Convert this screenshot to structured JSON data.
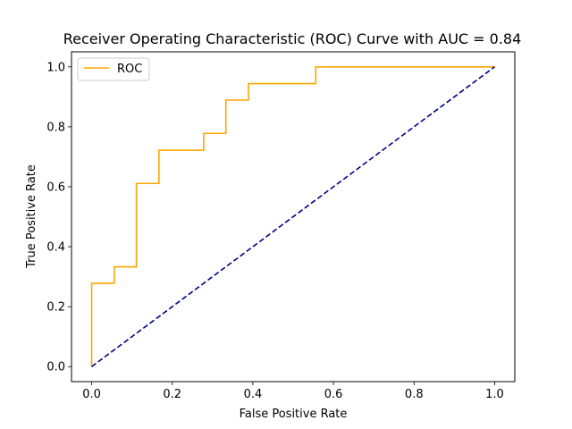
{
  "chart_data": {
    "type": "line",
    "title": "Receiver Operating Characteristic (ROC) Curve with AUC = 0.84",
    "xlabel": "False Positive Rate",
    "ylabel": "True Positive Rate",
    "xlim": [
      -0.05,
      1.05
    ],
    "ylim": [
      -0.05,
      1.05
    ],
    "x_ticks": [
      0.0,
      0.2,
      0.4,
      0.6,
      0.8,
      1.0
    ],
    "x_tick_labels": [
      "0.0",
      "0.2",
      "0.4",
      "0.6",
      "0.8",
      "1.0"
    ],
    "y_ticks": [
      0.0,
      0.2,
      0.4,
      0.6,
      0.8,
      1.0
    ],
    "y_tick_labels": [
      "0.0",
      "0.2",
      "0.4",
      "0.6",
      "0.8",
      "1.0"
    ],
    "grid": false,
    "legend": {
      "placement": "upper-left",
      "entries": [
        "ROC"
      ]
    },
    "series": [
      {
        "name": "ROC",
        "color": "#ffa500",
        "line_style": "solid",
        "x": [
          0.0,
          0.0,
          0.056,
          0.056,
          0.111,
          0.111,
          0.167,
          0.167,
          0.278,
          0.278,
          0.333,
          0.333,
          0.389,
          0.389,
          0.556,
          0.556,
          1.0
        ],
        "y": [
          0.0,
          0.278,
          0.278,
          0.333,
          0.333,
          0.611,
          0.611,
          0.722,
          0.722,
          0.778,
          0.778,
          0.889,
          0.889,
          0.944,
          0.944,
          1.0,
          1.0
        ]
      },
      {
        "color": "#000080",
        "line_style": "dashed",
        "x": [
          0.0,
          1.0
        ],
        "y": [
          0.0,
          1.0
        ]
      }
    ]
  }
}
